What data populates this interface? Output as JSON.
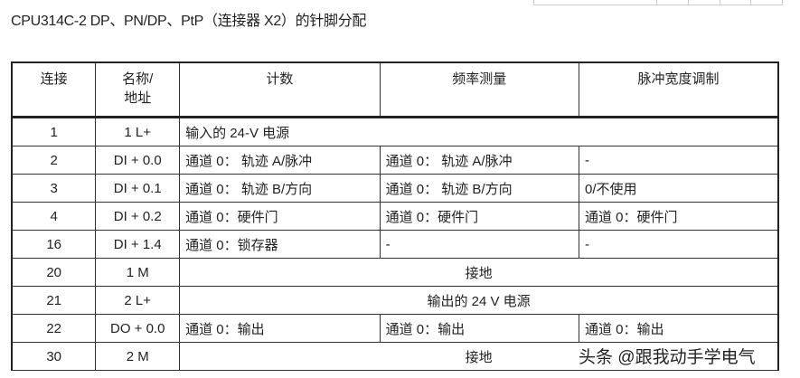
{
  "title": "CPU314C-2 DP、PN/DP、PtP（连接器 X2）的针脚分配",
  "headers": [
    "连接",
    "名称/地址",
    "计数",
    "频率测量",
    "脉冲宽度调制"
  ],
  "header_name_lines": [
    "名称/",
    "地址"
  ],
  "rows": [
    {
      "pin": "1",
      "name": "1 L+",
      "span": "输入的 24-V 电源",
      "align": "left"
    },
    {
      "pin": "2",
      "name": "DI + 0.0",
      "cells": [
        "通道 0： 轨迹 A/脉冲",
        "通道 0： 轨迹 A/脉冲",
        "-"
      ]
    },
    {
      "pin": "3",
      "name": "DI + 0.1",
      "cells": [
        "通道 0： 轨迹 B/方向",
        "通道 0： 轨迹 B/方向",
        "0/不使用"
      ]
    },
    {
      "pin": "4",
      "name": "DI + 0.2",
      "cells": [
        "通道 0：硬件门",
        "通道 0：硬件门",
        "通道 0：硬件门"
      ]
    },
    {
      "pin": "16",
      "name": "DI + 1.4",
      "cells": [
        "通道 0：锁存器",
        "-",
        "-"
      ]
    },
    {
      "pin": "20",
      "name": "1 M",
      "span": "接地",
      "align": "center"
    },
    {
      "pin": "21",
      "name": "2 L+",
      "span": "输出的 24 V 电源",
      "align": "center"
    },
    {
      "pin": "22",
      "name": "DO + 0.0",
      "cells": [
        "通道 0：输出",
        "通道 0：输出",
        "通道 0：输出"
      ]
    },
    {
      "pin": "30",
      "name": "2 M",
      "span": "接地",
      "align": "center"
    }
  ],
  "watermark": "头条 @跟我动手学电气"
}
